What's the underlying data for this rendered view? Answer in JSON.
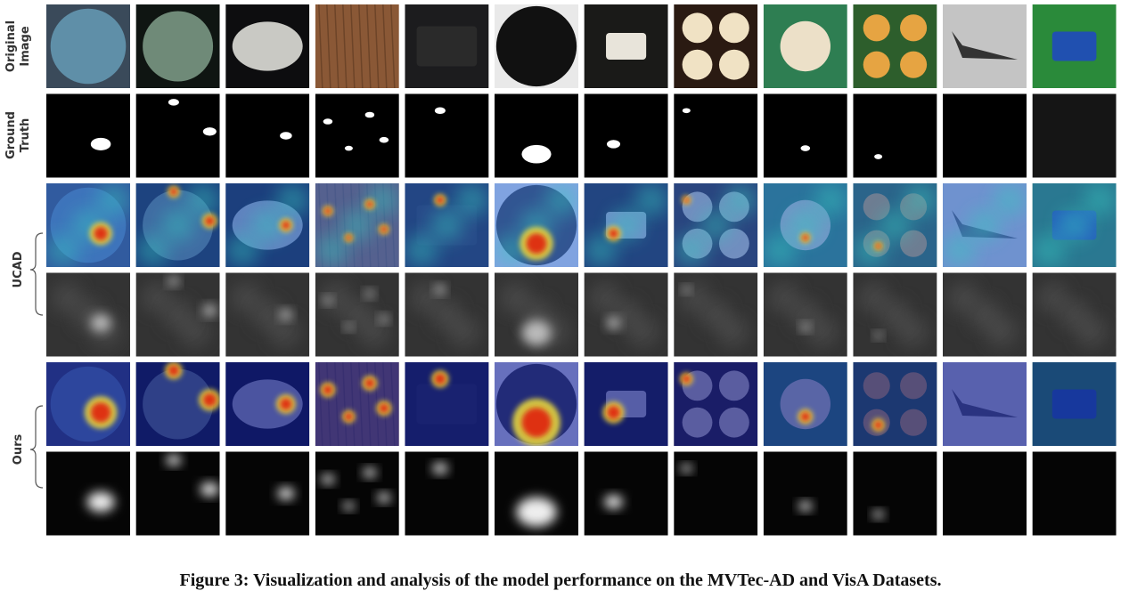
{
  "figure": {
    "row_labels": {
      "original": [
        "Original",
        "Image"
      ],
      "ground_truth": [
        "Ground",
        "Truth"
      ],
      "ucad": "UCAD",
      "ours": "Ours"
    },
    "caption": "Figure 3: Visualization and analysis of the model performance on the MVTec-AD and VisA Datasets."
  }
}
